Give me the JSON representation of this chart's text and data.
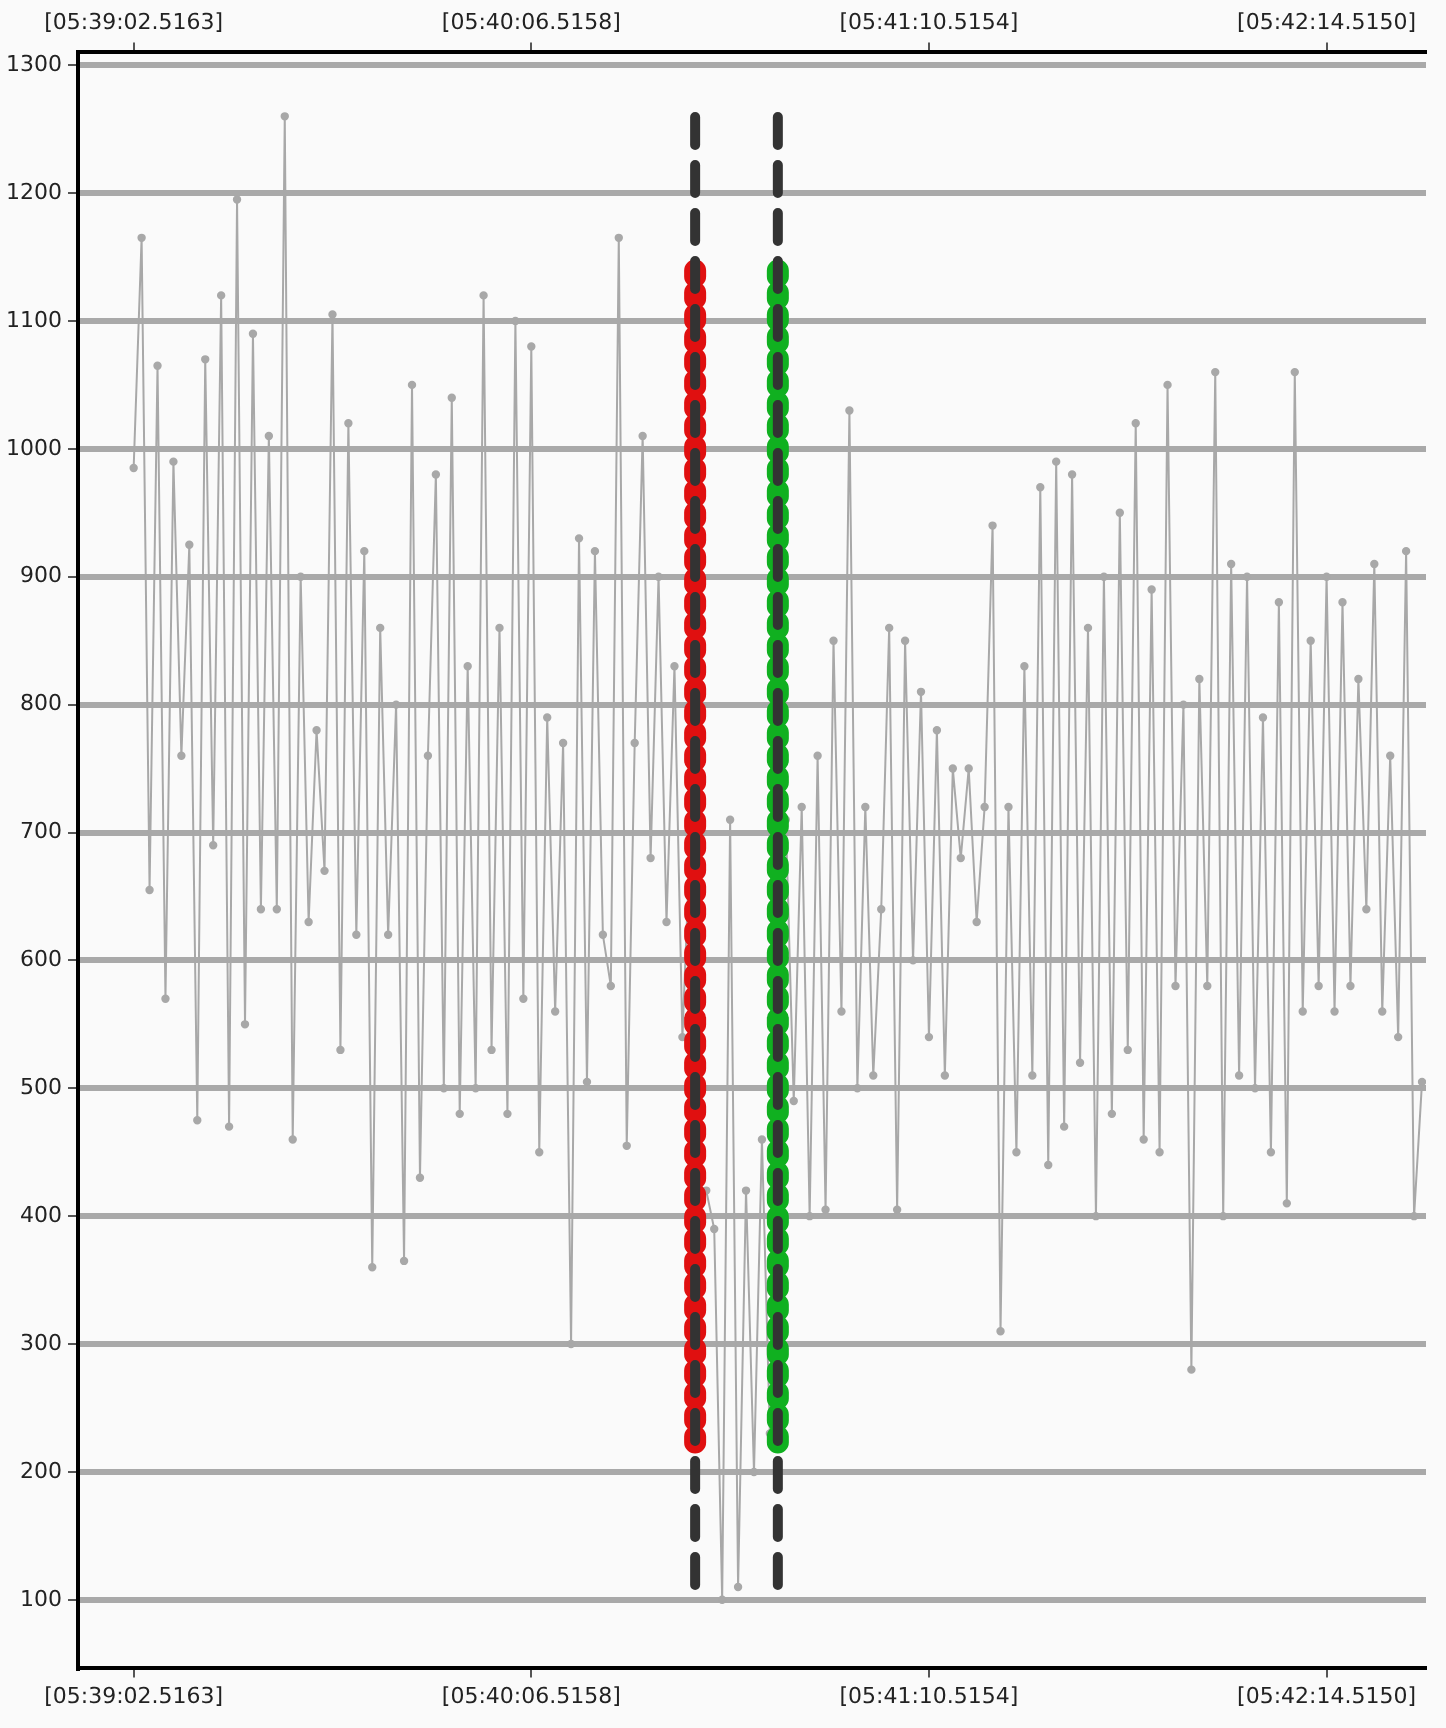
{
  "chart_data": {
    "type": "line",
    "grid": "y",
    "legend": false,
    "marker": "circle",
    "categories": [
      "[05:39:02.5163]",
      null,
      null,
      null,
      null,
      null,
      null,
      null,
      null,
      null,
      null,
      null,
      null,
      null,
      null,
      null,
      null,
      null,
      null,
      null,
      null,
      null,
      null,
      null,
      null,
      null,
      null,
      null,
      null,
      null,
      null,
      null,
      null,
      null,
      null,
      null,
      null,
      null,
      null,
      null,
      null,
      null,
      null,
      null,
      null,
      null,
      null,
      null,
      null,
      null,
      "[05:40:06.5158]",
      null,
      null,
      null,
      null,
      null,
      null,
      null,
      null,
      null,
      null,
      null,
      null,
      null,
      null,
      null,
      null,
      null,
      null,
      null,
      null,
      null,
      null,
      null,
      null,
      null,
      null,
      null,
      null,
      null,
      null,
      null,
      null,
      null,
      null,
      null,
      null,
      null,
      null,
      null,
      null,
      null,
      null,
      null,
      null,
      null,
      null,
      null,
      null,
      null,
      "[05:41:10.5154]",
      null,
      null,
      null,
      null,
      null,
      null,
      null,
      null,
      null,
      null,
      null,
      null,
      null,
      null,
      null,
      null,
      null,
      null,
      null,
      null,
      null,
      null,
      null,
      null,
      null,
      null,
      null,
      null,
      null,
      null,
      null,
      null,
      null,
      null,
      null,
      null,
      null,
      null,
      null,
      null,
      null,
      null,
      null,
      null,
      null,
      null,
      null,
      null,
      null,
      "[05:42:14.5150]",
      null,
      null,
      null,
      null,
      null,
      null,
      null,
      null,
      null,
      null,
      null,
      null
    ],
    "ylim": [
      47,
      1310
    ],
    "yticks": [
      100,
      200,
      300,
      400,
      500,
      600,
      700,
      800,
      900,
      1000,
      1100,
      1200,
      1300
    ],
    "series": [
      {
        "color": "#a8a8a8",
        "values": [
          985,
          1165,
          655,
          1065,
          570,
          990,
          760,
          925,
          475,
          1070,
          690,
          1120,
          470,
          1195,
          550,
          1090,
          640,
          1010,
          640,
          1260,
          460,
          900,
          630,
          780,
          670,
          1105,
          530,
          1020,
          620,
          920,
          360,
          860,
          620,
          800,
          365,
          1050,
          430,
          760,
          980,
          500,
          1040,
          480,
          830,
          500,
          1120,
          530,
          860,
          480,
          1100,
          570,
          1080,
          450,
          790,
          560,
          770,
          300,
          930,
          505,
          920,
          620,
          580,
          1165,
          455,
          770,
          1010,
          680,
          900,
          630,
          830,
          540,
          700,
          null,
          420,
          390,
          100,
          710,
          110,
          420,
          200,
          460,
          230,
          null,
          710,
          490,
          720,
          400,
          760,
          405,
          850,
          560,
          1030,
          500,
          720,
          510,
          640,
          860,
          405,
          850,
          600,
          810,
          540,
          780,
          510,
          750,
          680,
          750,
          630,
          720,
          940,
          310,
          720,
          450,
          830,
          510,
          970,
          440,
          990,
          470,
          980,
          520,
          860,
          400,
          900,
          480,
          950,
          530,
          1020,
          460,
          890,
          450,
          1050,
          580,
          800,
          280,
          820,
          580,
          1060,
          400,
          910,
          510,
          900,
          500,
          790,
          450,
          880,
          410,
          1060,
          560,
          850,
          580,
          900,
          560,
          880,
          580,
          820,
          640,
          910,
          560,
          760,
          540,
          920,
          400,
          505
        ]
      }
    ]
  }
}
